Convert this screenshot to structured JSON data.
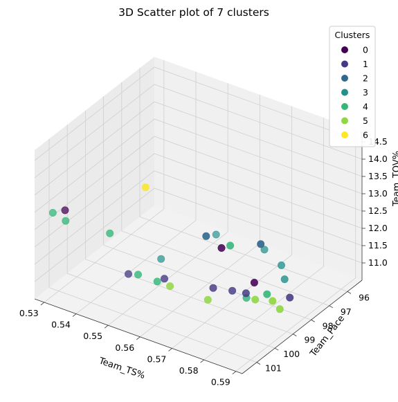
{
  "chart_data": {
    "type": "scatter",
    "projection": "3d",
    "title": "3D Scatter plot of 7 clusters",
    "xlabel": "Team_TS%",
    "ylabel": "Team_Pace",
    "zlabel": "Team_TOV%",
    "xlim": [
      0.527,
      0.592
    ],
    "ylim": [
      95.2,
      101.8
    ],
    "zlim": [
      10.5,
      14.8
    ],
    "xticks": [
      "0.53",
      "0.54",
      "0.55",
      "0.56",
      "0.57",
      "0.58",
      "0.59"
    ],
    "yticks": [
      "96",
      "97",
      "98",
      "99",
      "100",
      "101"
    ],
    "zticks": [
      "11.0",
      "11.5",
      "12.0",
      "12.5",
      "13.0",
      "13.5",
      "14.0",
      "14.5"
    ],
    "grid": true,
    "colormap": "viridis",
    "legend": {
      "title": "Clusters",
      "placement": "top-right",
      "entries": [
        {
          "label": "0",
          "color": "#440154"
        },
        {
          "label": "1",
          "color": "#443983"
        },
        {
          "label": "2",
          "color": "#31688e"
        },
        {
          "label": "3",
          "color": "#21918c"
        },
        {
          "label": "4",
          "color": "#35b779"
        },
        {
          "label": "5",
          "color": "#90d743"
        },
        {
          "label": "6",
          "color": "#fde725"
        }
      ]
    },
    "series": [
      {
        "cluster": 0,
        "points": [
          [
            0.532,
            101.0,
            12.9
          ],
          [
            0.573,
            99.6,
            12.6
          ],
          [
            0.581,
            99.2,
            11.7
          ]
        ]
      },
      {
        "cluster": 1,
        "points": [
          [
            0.545,
            99.8,
            11.0
          ],
          [
            0.554,
            99.4,
            11.0
          ],
          [
            0.567,
            99.0,
            11.0
          ],
          [
            0.575,
            98.6,
            10.95
          ],
          [
            0.569,
            98.3,
            10.7
          ],
          [
            0.587,
            98.3,
            11.1
          ]
        ]
      },
      {
        "cluster": 2,
        "points": [
          [
            0.575,
            100.8,
            13.5
          ],
          [
            0.587,
            99.9,
            13.3
          ]
        ]
      },
      {
        "cluster": 3,
        "points": [
          [
            0.552,
            96.2,
            10.9
          ],
          [
            0.566,
            96.0,
            10.85
          ],
          [
            0.545,
            98.0,
            10.7
          ],
          [
            0.573,
            96.3,
            10.75
          ],
          [
            0.578,
            97.0,
            10.8
          ]
        ]
      },
      {
        "cluster": 4,
        "points": [
          [
            0.531,
            101.5,
            13.0
          ],
          [
            0.535,
            101.5,
            12.9
          ],
          [
            0.546,
            101.0,
            12.7
          ],
          [
            0.552,
            100.5,
            11.5
          ],
          [
            0.558,
            100.5,
            11.5
          ],
          [
            0.578,
            100.0,
            13.0
          ],
          [
            0.574,
            98.4,
            10.7
          ],
          [
            0.585,
            99.2,
            11.5
          ]
        ]
      },
      {
        "cluster": 5,
        "points": [
          [
            0.562,
            100.5,
            11.5
          ],
          [
            0.571,
            100.0,
            11.2
          ],
          [
            0.583,
            99.5,
            11.4
          ],
          [
            0.589,
            99.6,
            11.6
          ],
          [
            0.589,
            99.2,
            11.2
          ]
        ]
      },
      {
        "cluster": 6,
        "points": [
          [
            0.56,
            101.5,
            14.7
          ]
        ]
      }
    ]
  }
}
